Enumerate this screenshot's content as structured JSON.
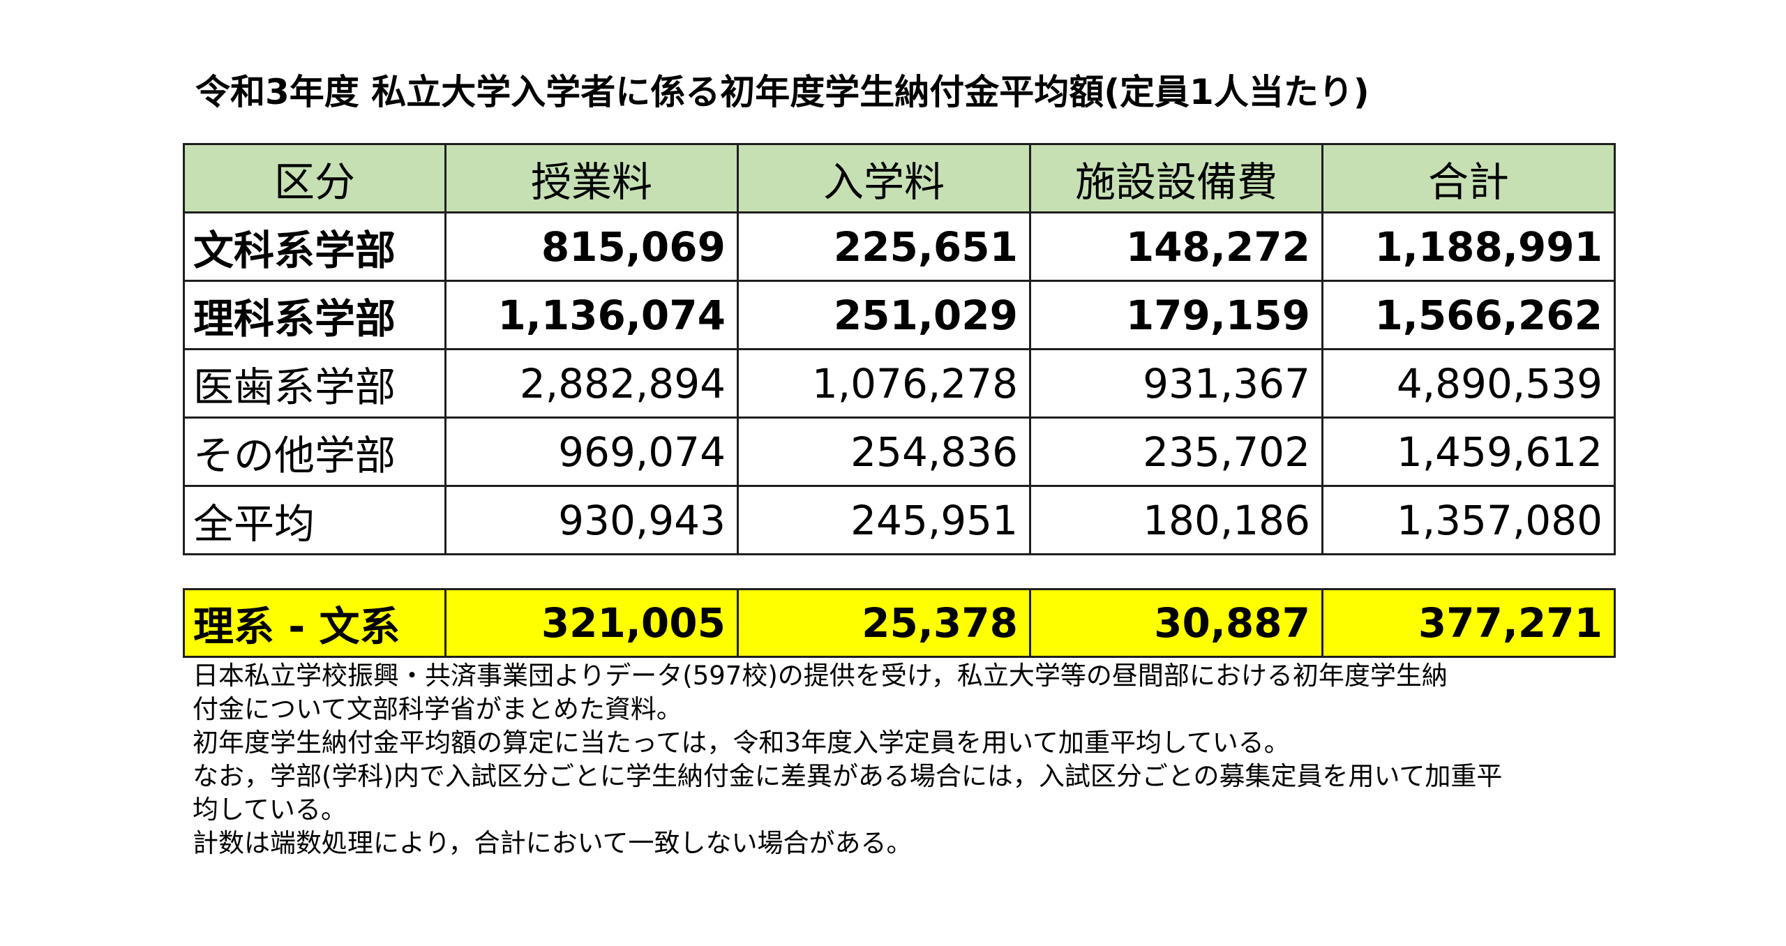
{
  "title": "令和3年度 私立大学入学者に係る初年度学生納付金平均額(定員1人当たり)",
  "headers": [
    "区分",
    "授業料",
    "入学料",
    "施設設備費",
    "合計"
  ],
  "rows": [
    {
      "label": "文科系学部",
      "values": [
        "815,069",
        "225,651",
        "148,272",
        "1,188,991"
      ]
    },
    {
      "label": "理科系学部",
      "values": [
        "1,136,074",
        "251,029",
        "179,159",
        "1,566,262"
      ]
    },
    {
      "label": "医歯系学部",
      "values": [
        "2,882,894",
        "1,076,278",
        "931,367",
        "4,890,539"
      ]
    },
    {
      "label": "その他学部",
      "values": [
        "969,074",
        "254,836",
        "235,702",
        "1,459,612"
      ]
    },
    {
      "label": "全平均",
      "values": [
        "930,943",
        "245,951",
        "180,186",
        "1,357,080"
      ]
    }
  ],
  "difference_row": {
    "label": "理系 - 文系",
    "values": [
      "321,005",
      "25,378",
      "30,887",
      "377,271"
    ]
  },
  "notes": [
    "日本私立学校振興・共済事業団よりデータ(597校)の提供を受け，私立大学等の昼間部における初年度学生納",
    "付金について文部科学省がまとめた資料。",
    "初年度学生納付金平均額の算定に当たっては，令和3年度入学定員を用いて加重平均している。",
    "なお，学部(学科)内で入試区分ごとに学生納付金に差異がある場合には，入試区分ごとの募集定員を用いて加重平",
    "均している。",
    "計数は端数処理により，合計において一致しない場合がある。"
  ],
  "colors": {
    "header_bg": "#c6e0b4",
    "highlight_bg": "#ffff00",
    "border": "#1e1e1e"
  }
}
